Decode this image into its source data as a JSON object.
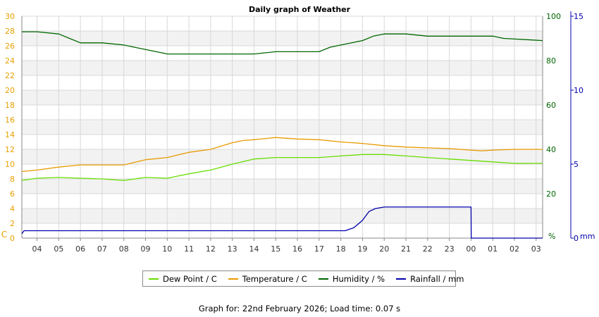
{
  "chart_data": {
    "type": "line",
    "title": "Daily graph of Weather",
    "x_tick_labels": [
      "04",
      "05",
      "06",
      "07",
      "08",
      "09",
      "10",
      "11",
      "12",
      "13",
      "14",
      "15",
      "16",
      "17",
      "18",
      "19",
      "20",
      "21",
      "22",
      "23",
      "00",
      "01",
      "02",
      "03"
    ],
    "y_left": {
      "unit_label": "C",
      "range": [
        0,
        30
      ],
      "ticks": [
        0,
        2,
        4,
        6,
        8,
        10,
        12,
        14,
        16,
        18,
        20,
        22,
        24,
        26,
        28,
        30
      ],
      "color": "#e8a000"
    },
    "y_right_humidity": {
      "unit_label": "%",
      "range": [
        0,
        100
      ],
      "ticks": [
        0,
        20,
        40,
        60,
        80,
        100
      ],
      "color": "#006600"
    },
    "y_right_rain": {
      "unit_label": "mm",
      "range": [
        0,
        15
      ],
      "ticks": [
        0,
        5,
        10,
        15
      ],
      "color": "#0000aa"
    },
    "grid": true,
    "legend_placement": "bottom",
    "series": [
      {
        "name": "Dew Point / C",
        "axis": "left",
        "color": "#66dd00",
        "x": [
          3.3,
          4,
          5,
          6,
          7,
          8,
          9,
          10,
          11,
          12,
          13,
          14,
          15,
          16,
          17,
          18,
          19,
          20,
          21,
          22,
          23,
          24,
          25,
          26,
          27.3
        ],
        "values": [
          7.8,
          8.1,
          8.2,
          8.1,
          8.0,
          7.8,
          8.2,
          8.1,
          8.7,
          9.2,
          10.0,
          10.7,
          10.9,
          10.9,
          10.9,
          11.1,
          11.3,
          11.3,
          11.1,
          10.9,
          10.7,
          10.5,
          10.3,
          10.1,
          10.1
        ]
      },
      {
        "name": "Temperature / C",
        "axis": "left",
        "color": "#e89a00",
        "x": [
          3.3,
          4,
          5,
          6,
          7,
          8,
          9,
          10,
          11,
          12,
          13,
          13.5,
          14,
          15,
          16,
          17,
          18,
          19,
          20,
          21,
          22,
          23,
          24,
          24.5,
          25,
          26,
          27.3
        ],
        "values": [
          9.0,
          9.2,
          9.6,
          9.9,
          9.9,
          9.9,
          10.6,
          10.9,
          11.6,
          12.0,
          12.9,
          13.2,
          13.3,
          13.6,
          13.4,
          13.3,
          13.0,
          12.8,
          12.5,
          12.3,
          12.2,
          12.1,
          11.9,
          11.8,
          11.9,
          12.0,
          12.0
        ]
      },
      {
        "name": "Humidity / %",
        "axis": "right_humidity",
        "color": "#006600",
        "x": [
          3.3,
          4,
          5,
          5.5,
          6,
          7,
          8,
          8.5,
          9,
          9.5,
          10,
          11,
          12,
          13,
          14,
          15,
          16,
          17,
          17.5,
          18,
          18.5,
          19,
          19.5,
          20,
          21,
          22,
          23,
          24,
          25,
          25.5,
          27.3
        ],
        "values": [
          93,
          93,
          92,
          90,
          88,
          88,
          87,
          86,
          85,
          84,
          83,
          83,
          83,
          83,
          83,
          84,
          84,
          84,
          86,
          87,
          88,
          89,
          91,
          92,
          92,
          91,
          91,
          91,
          91,
          90,
          89
        ]
      },
      {
        "name": "Rainfall / mm",
        "axis": "right_rain",
        "color": "#0000aa",
        "x": [
          3.3,
          3.4,
          4,
          8,
          12,
          16,
          18.2,
          18.6,
          19,
          19.3,
          19.6,
          20,
          21,
          22,
          23,
          24,
          24.01,
          27.3
        ],
        "values": [
          0.3,
          0.5,
          0.5,
          0.5,
          0.5,
          0.5,
          0.5,
          0.7,
          1.2,
          1.8,
          2.0,
          2.1,
          2.1,
          2.1,
          2.1,
          2.1,
          0,
          0
        ]
      }
    ]
  },
  "footer_text": "Graph for: 22nd February 2026; Load time: 0.07 s"
}
